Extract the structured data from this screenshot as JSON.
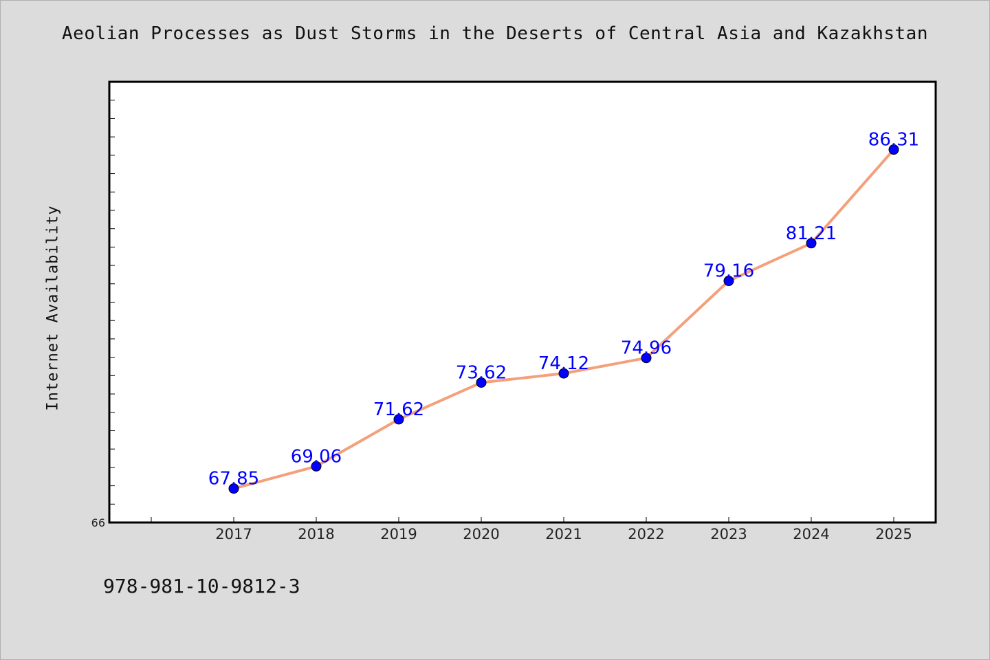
{
  "chart_data": {
    "type": "line",
    "title": "Aeolian Processes as Dust Storms in the Deserts of Central Asia and Kazakhstan",
    "xlabel": "",
    "ylabel": "Internet Availability",
    "categories": [
      "2017",
      "2018",
      "2019",
      "2020",
      "2021",
      "2022",
      "2023",
      "2024",
      "2025"
    ],
    "values": [
      67.85,
      69.06,
      71.62,
      73.62,
      74.12,
      74.96,
      79.16,
      81.21,
      86.31
    ],
    "y_tick_labels": [
      "66"
    ],
    "ylim": [
      66,
      90
    ],
    "grid": false,
    "legend": "none",
    "colors": {
      "line": "#f4a07a",
      "marker": "#0000ff",
      "label": "#0000ff"
    }
  },
  "footer": {
    "code": "978-981-10-9812-3"
  }
}
